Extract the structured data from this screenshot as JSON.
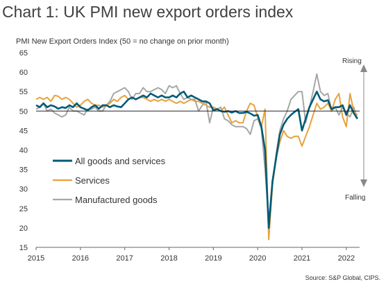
{
  "title": "Chart 1: UK PMI new export orders index",
  "subtitle": "PMI New Export Orders Index (50 = no change on prior month)",
  "source": "Source: S&P Global, CIPS.",
  "chart_data": {
    "type": "line",
    "ylim": [
      15,
      65
    ],
    "yticks": [
      15,
      20,
      25,
      30,
      35,
      40,
      45,
      50,
      55,
      60,
      65
    ],
    "xlim": [
      2015.0,
      2022.3
    ],
    "xticks": [
      "2015",
      "2016",
      "2017",
      "2018",
      "2019",
      "2020",
      "2021",
      "2022"
    ],
    "reference_line": 50,
    "annotations": {
      "rising": "Rising",
      "falling": "Falling"
    },
    "legend_position": "left-middle",
    "series": [
      {
        "name": "All goods and services",
        "color": "#005a78",
        "start": "2015-01",
        "values": [
          51.5,
          51.0,
          52.0,
          51.0,
          51.5,
          51.2,
          50.6,
          51.0,
          50.8,
          51.5,
          51.0,
          52.0,
          51.0,
          50.6,
          50.2,
          51.0,
          51.5,
          50.6,
          51.5,
          51.5,
          51.0,
          51.5,
          51.2,
          51.0,
          52.0,
          53.0,
          53.5,
          53.0,
          53.5,
          54.0,
          53.5,
          54.5,
          54.0,
          53.5,
          54.0,
          53.5,
          53.5,
          54.0,
          53.5,
          54.5,
          55.0,
          53.5,
          54.0,
          53.5,
          53.0,
          52.5,
          52.5,
          52.0,
          50.2,
          50.5,
          50.0,
          49.8,
          50.0,
          49.6,
          50.0,
          49.5,
          49.5,
          49.8,
          49.4,
          48.8,
          49.0,
          46.0,
          40.0,
          20.0,
          32.0,
          38.0,
          44.0,
          46.5,
          48.0,
          49.0,
          49.8,
          50.5,
          45.0,
          48.0,
          51.0,
          53.0,
          55.0,
          53.0,
          52.5,
          52.8,
          50.5,
          51.0,
          51.0,
          51.5,
          49.0,
          51.5,
          49.5,
          48.0
        ]
      },
      {
        "name": "Services",
        "color": "#e8a13a",
        "start": "2015-01",
        "values": [
          53.0,
          53.5,
          53.0,
          53.5,
          52.5,
          54.0,
          53.8,
          53.0,
          53.5,
          53.0,
          52.0,
          51.0,
          51.5,
          52.5,
          53.0,
          52.0,
          51.5,
          51.5,
          51.0,
          51.5,
          52.0,
          53.0,
          52.5,
          53.5,
          54.0,
          53.0,
          53.5,
          53.0,
          53.5,
          53.5,
          53.0,
          52.5,
          53.0,
          52.5,
          53.0,
          52.5,
          53.0,
          52.5,
          52.0,
          52.5,
          52.0,
          52.5,
          53.0,
          52.5,
          52.5,
          52.0,
          51.5,
          51.0,
          51.0,
          50.5,
          50.0,
          51.0,
          49.0,
          47.0,
          47.5,
          47.0,
          47.0,
          50.0,
          52.0,
          51.5,
          48.5,
          46.0,
          50.5,
          17.0,
          31.0,
          38.0,
          42.0,
          45.0,
          43.5,
          43.0,
          43.5,
          43.5,
          41.0,
          43.5,
          46.0,
          49.0,
          52.0,
          50.5,
          51.0,
          52.0,
          50.0,
          53.0,
          54.5,
          48.5,
          46.0,
          54.5,
          50.0,
          49.0
        ]
      },
      {
        "name": "Manufactured goods",
        "color": "#a6a6a6",
        "start": "2015-01",
        "values": [
          50.5,
          51.0,
          52.0,
          50.0,
          50.5,
          49.5,
          49.0,
          48.5,
          49.0,
          51.0,
          50.0,
          50.0,
          49.5,
          49.0,
          50.5,
          50.5,
          51.0,
          50.0,
          50.0,
          51.5,
          52.5,
          54.5,
          55.0,
          55.5,
          56.0,
          55.0,
          53.0,
          54.5,
          54.5,
          56.0,
          55.0,
          55.0,
          55.5,
          56.0,
          55.5,
          54.5,
          56.5,
          56.0,
          56.5,
          54.5,
          53.0,
          53.5,
          53.0,
          53.0,
          50.0,
          51.5,
          52.5,
          47.0,
          51.0,
          50.5,
          51.0,
          48.0,
          47.5,
          46.5,
          46.0,
          46.0,
          46.0,
          45.5,
          44.0,
          47.5,
          48.0,
          45.5,
          35.0,
          22.0,
          32.0,
          39.0,
          45.0,
          48.0,
          50.0,
          53.0,
          54.0,
          55.0,
          55.0,
          47.0,
          51.0,
          55.0,
          59.5,
          55.0,
          54.0,
          54.5,
          50.0,
          51.0,
          49.0,
          51.0,
          49.5,
          48.5,
          51.0,
          48.0
        ]
      }
    ]
  }
}
